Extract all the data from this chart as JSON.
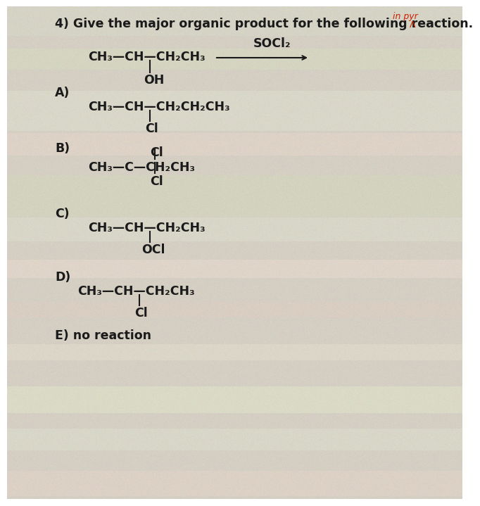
{
  "bg_color": "#d8d0c0",
  "title": "4) Give the major organic product for the following reaction.",
  "watermark_line1": "in pyr",
  "watermark_line2": "Λ",
  "reagent": "SOCl₂",
  "reactant_main": "CH₃—CH—CH₂CH₃",
  "reactant_sub": "OH",
  "opt_A_main": "CH₃—CH—CH₂CH₂CH₃",
  "opt_A_sub": "Cl",
  "opt_B_top": "Cl",
  "opt_B_main": "CH₃—C—CH₂CH₃",
  "opt_B_bot": "Cl",
  "opt_C_main": "CH₃—CH—CH₂CH₃",
  "opt_C_sub": "OCl",
  "opt_D_main": "CH₃—CH—CH₂CH₃",
  "opt_D_sub": "Cl",
  "opt_E": "E) no reaction",
  "fs_title": 12.5,
  "fs_body": 12.5,
  "fs_label": 12.5,
  "fs_wm": 9,
  "text_color": "#1a1a1a",
  "red_color": "#cc2200"
}
